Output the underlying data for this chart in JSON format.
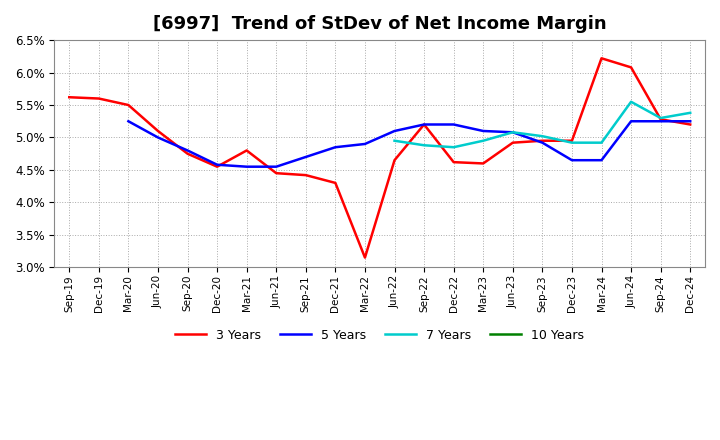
{
  "title": "[6997]  Trend of StDev of Net Income Margin",
  "x_labels": [
    "Sep-19",
    "Dec-19",
    "Mar-20",
    "Jun-20",
    "Sep-20",
    "Dec-20",
    "Mar-21",
    "Jun-21",
    "Sep-21",
    "Dec-21",
    "Mar-22",
    "Jun-22",
    "Sep-22",
    "Dec-22",
    "Mar-23",
    "Jun-23",
    "Sep-23",
    "Dec-23",
    "Mar-24",
    "Jun-24",
    "Sep-24",
    "Dec-24"
  ],
  "series": {
    "3 Years": {
      "color": "#ff0000",
      "values": [
        5.62,
        5.6,
        5.5,
        5.1,
        4.75,
        4.55,
        4.8,
        4.45,
        4.42,
        4.3,
        3.15,
        4.65,
        5.2,
        4.62,
        4.6,
        4.92,
        4.95,
        4.95,
        6.22,
        6.08,
        5.28,
        5.2
      ]
    },
    "5 Years": {
      "color": "#0000ff",
      "values": [
        null,
        null,
        5.25,
        5.0,
        4.8,
        4.58,
        4.55,
        4.55,
        4.7,
        4.85,
        4.9,
        5.1,
        5.2,
        5.2,
        5.1,
        5.08,
        4.92,
        4.65,
        4.65,
        5.25,
        5.25,
        5.25
      ]
    },
    "7 Years": {
      "color": "#00cccc",
      "values": [
        null,
        null,
        null,
        null,
        null,
        null,
        null,
        null,
        null,
        null,
        null,
        4.95,
        4.88,
        4.85,
        4.95,
        5.08,
        5.02,
        4.92,
        4.92,
        5.55,
        5.3,
        5.38
      ]
    },
    "10 Years": {
      "color": "#008000",
      "values": [
        null,
        null,
        null,
        null,
        null,
        null,
        null,
        null,
        null,
        null,
        null,
        null,
        null,
        null,
        null,
        null,
        null,
        null,
        null,
        null,
        null,
        null
      ]
    }
  },
  "ylim": [
    3.0,
    6.5
  ],
  "yticks": [
    3.0,
    3.5,
    4.0,
    4.5,
    5.0,
    5.5,
    6.0,
    6.5
  ],
  "background_color": "#ffffff",
  "grid_color": "#aaaaaa",
  "title_fontsize": 13
}
